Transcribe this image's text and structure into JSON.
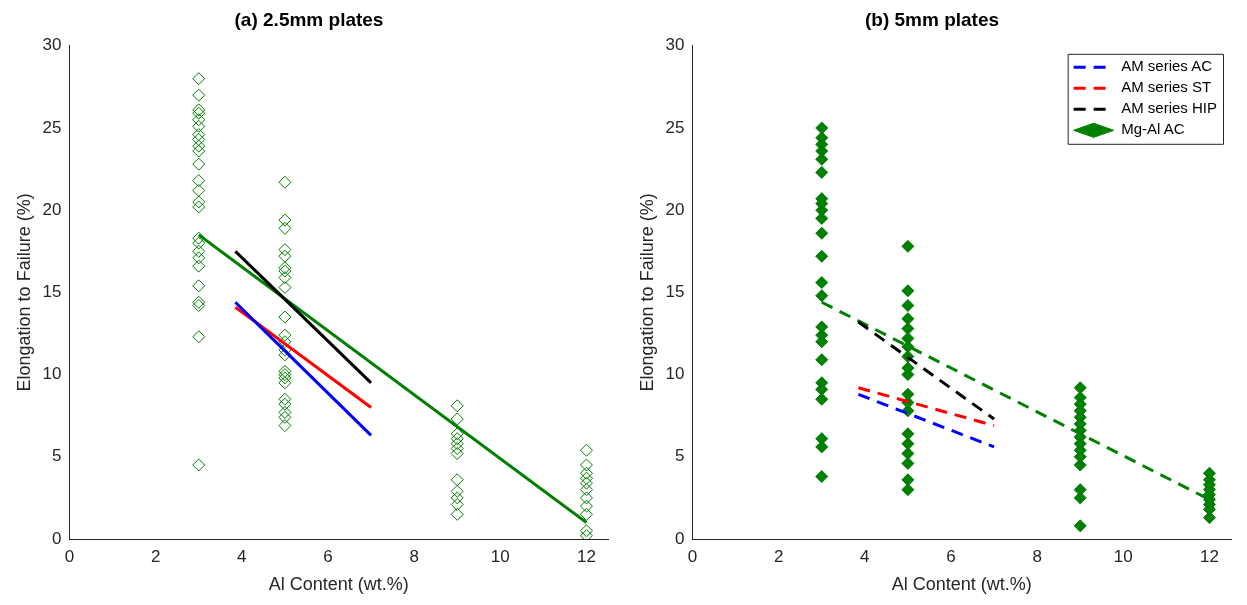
{
  "chart_data": [
    {
      "type": "scatter",
      "title": "(a) 2.5mm plates",
      "xlabel": "Al Content (wt.%)",
      "ylabel": "Elongation to Failure (%)",
      "xlim": [
        0,
        12.5
      ],
      "xticks": [
        0,
        2,
        4,
        6,
        8,
        10,
        12
      ],
      "ylim": [
        0,
        30
      ],
      "yticks": [
        0,
        5,
        10,
        15,
        20,
        25,
        30
      ],
      "grid": false,
      "legend": false,
      "series": [
        {
          "type": "scatter",
          "color": "#008000",
          "marker": "diamond",
          "x": [
            3,
            3,
            3,
            3,
            3,
            3,
            3,
            3,
            3,
            3,
            3,
            3,
            3,
            3,
            3,
            3,
            3,
            3,
            3,
            3,
            3,
            3,
            3,
            3,
            3,
            5,
            5,
            5,
            5,
            5,
            5,
            5,
            5,
            5,
            5,
            5,
            5,
            5,
            5,
            5,
            5,
            5,
            5,
            5,
            5,
            5,
            5,
            5,
            9,
            9,
            9,
            9,
            9,
            9,
            9,
            9,
            9,
            9,
            9,
            9,
            12,
            12,
            12,
            12,
            12,
            12,
            12,
            12,
            12,
            12,
            12
          ],
          "values": [
            28.0,
            27.0,
            26.1,
            25.9,
            25.5,
            25.1,
            24.6,
            24.3,
            23.9,
            23.6,
            22.8,
            21.8,
            21.2,
            20.5,
            20.2,
            18.3,
            18.0,
            17.5,
            17.1,
            16.6,
            15.4,
            14.4,
            14.2,
            12.3,
            4.5,
            21.7,
            19.4,
            18.9,
            17.6,
            17.2,
            16.5,
            16.3,
            15.9,
            15.3,
            13.5,
            12.4,
            12.0,
            11.5,
            11.2,
            10.2,
            10.0,
            9.8,
            9.5,
            8.5,
            8.2,
            7.7,
            7.4,
            6.9,
            8.1,
            7.3,
            6.4,
            6.1,
            5.8,
            5.5,
            5.2,
            3.6,
            2.9,
            2.5,
            2.1,
            1.5,
            5.4,
            4.5,
            4.0,
            3.7,
            3.4,
            3.0,
            2.5,
            2.0,
            1.5,
            0.5,
            0.2
          ]
        },
        {
          "type": "line",
          "color": "#0000ff",
          "line_style": "solid",
          "x": [
            3.85,
            7
          ],
          "values": [
            14.4,
            6.3
          ]
        },
        {
          "type": "line",
          "color": "#ff0000",
          "line_style": "solid",
          "x": [
            3.85,
            7
          ],
          "values": [
            14.1,
            8.0
          ]
        },
        {
          "type": "line",
          "color": "#000000",
          "line_style": "solid",
          "x": [
            3.85,
            7
          ],
          "values": [
            17.5,
            9.5
          ]
        },
        {
          "type": "line",
          "color": "#008000",
          "line_style": "solid",
          "x": [
            3,
            12
          ],
          "values": [
            18.5,
            1.0
          ]
        }
      ]
    },
    {
      "type": "scatter",
      "title": "(b) 5mm plates",
      "xlabel": "Al Content (wt.%)",
      "ylabel": "Elongation to Failure (%)",
      "xlim": [
        0,
        12.5
      ],
      "xticks": [
        0,
        2,
        4,
        6,
        8,
        10,
        12
      ],
      "ylim": [
        0,
        30
      ],
      "yticks": [
        0,
        5,
        10,
        15,
        20,
        25,
        30
      ],
      "grid": false,
      "legend": "top right",
      "series": [
        {
          "type": "line",
          "name": "AM series AC",
          "color": "#0000ff",
          "line_style": "dashed",
          "x": [
            3.85,
            7
          ],
          "values": [
            8.8,
            5.6
          ]
        },
        {
          "type": "line",
          "name": "AM series ST",
          "color": "#ff0000",
          "line_style": "dashed",
          "x": [
            3.85,
            7
          ],
          "values": [
            9.2,
            6.9
          ]
        },
        {
          "type": "line",
          "name": "AM series HIP",
          "color": "#000000",
          "line_style": "dashed",
          "x": [
            3.85,
            7
          ],
          "values": [
            13.2,
            7.3
          ]
        },
        {
          "type": "scatter",
          "name": "Mg-Al AC",
          "color": "#008000",
          "marker": "diamond",
          "x": [
            3,
            3,
            3,
            3,
            3,
            3,
            3,
            3,
            3,
            3,
            3,
            3,
            3,
            3,
            3,
            3,
            3,
            3,
            3,
            3,
            3,
            3,
            3,
            3,
            5,
            5,
            5,
            5,
            5,
            5,
            5,
            5,
            5,
            5,
            5,
            5,
            5,
            5,
            5,
            5,
            5,
            5,
            5,
            9,
            9,
            9,
            9,
            9,
            9,
            9,
            9,
            9,
            9,
            9,
            9,
            9,
            9,
            9,
            12,
            12,
            12,
            12,
            12,
            12,
            12,
            12,
            12
          ],
          "values": [
            25.0,
            24.4,
            24.0,
            23.6,
            23.1,
            22.3,
            20.7,
            20.4,
            20.0,
            19.5,
            18.6,
            17.2,
            15.6,
            14.8,
            12.9,
            12.4,
            12.0,
            10.9,
            9.5,
            9.1,
            8.5,
            6.1,
            5.6,
            3.8,
            17.8,
            15.1,
            14.2,
            13.4,
            12.8,
            12.2,
            11.7,
            11.1,
            10.4,
            10.0,
            8.8,
            8.3,
            7.8,
            6.4,
            5.8,
            5.2,
            4.6,
            3.6,
            3.0,
            9.2,
            8.6,
            8.2,
            7.8,
            7.4,
            7.0,
            6.6,
            6.2,
            5.8,
            5.4,
            5.0,
            4.5,
            3.0,
            2.5,
            0.8,
            4.0,
            3.6,
            3.3,
            3.0,
            2.7,
            2.4,
            2.1,
            1.8,
            1.3
          ]
        },
        {
          "type": "line",
          "color": "#008000",
          "line_style": "dashed",
          "x": [
            3,
            12
          ],
          "values": [
            14.4,
            2.4
          ]
        }
      ]
    }
  ]
}
